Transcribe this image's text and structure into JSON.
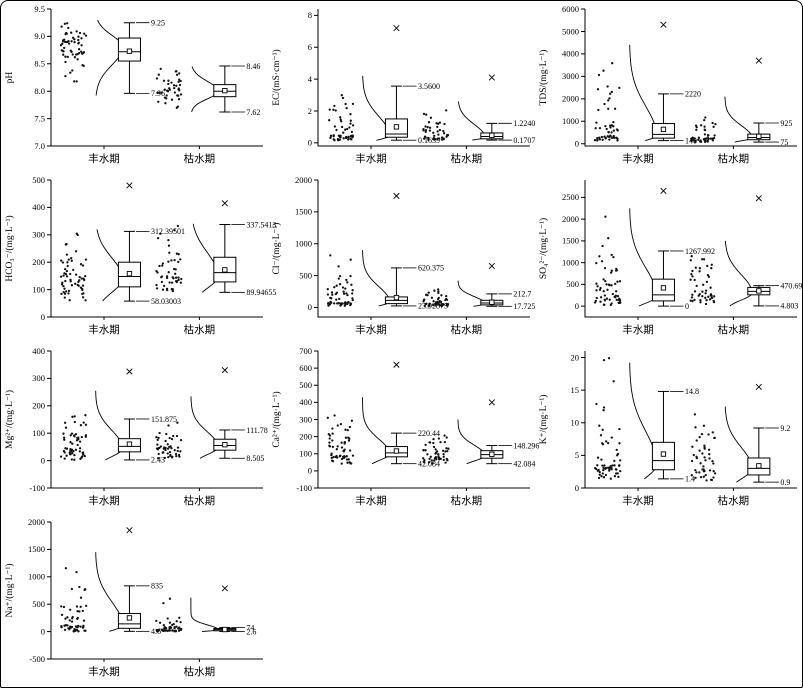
{
  "figure": {
    "background": "#ffffff",
    "border_color": "#000000",
    "line_color": "#000000",
    "categories": [
      "丰水期",
      "枯水期"
    ]
  },
  "chart_data": [
    {
      "id": "ph",
      "type": "box",
      "ylabel": "pH",
      "ylim": [
        7.0,
        9.5
      ],
      "ytick_values": [
        7.0,
        7.5,
        8.0,
        8.5,
        9.0,
        9.5
      ],
      "ytick_labels": [
        "7.0",
        "7.5",
        "8.0",
        "8.5",
        "9.0",
        "9.5"
      ],
      "groups": [
        {
          "category": "丰水期",
          "whisker_low": 7.96,
          "whisker_high": 9.25,
          "q1": 8.55,
          "median": 8.72,
          "q3": 8.97,
          "mean": 8.73,
          "label_high": "9.25",
          "label_low": "7.96",
          "outlier": null,
          "scatter": {
            "n": 60,
            "mode": 8.8,
            "sd_down": 0.32,
            "sd_up": 0.22,
            "min": 7.92,
            "max": 9.3
          },
          "extra": []
        },
        {
          "category": "枯水期",
          "whisker_low": 7.62,
          "whisker_high": 8.46,
          "q1": 7.9,
          "median": 8.0,
          "q3": 8.12,
          "mean": 8.01,
          "label_high": "8.46",
          "label_low": "7.62",
          "outlier": null,
          "scatter": {
            "n": 42,
            "mode": 8.0,
            "sd_down": 0.14,
            "sd_up": 0.18,
            "min": 7.62,
            "max": 8.45
          },
          "extra": []
        }
      ]
    },
    {
      "id": "ec",
      "type": "box",
      "ylabel": "EC/(mS·cm⁻¹)",
      "ylim": [
        -0.2,
        8.4
      ],
      "ytick_values": [
        0,
        2,
        4,
        6,
        8
      ],
      "ytick_labels": [
        "0",
        "2",
        "4",
        "6",
        "8"
      ],
      "groups": [
        {
          "category": "丰水期",
          "whisker_low": 0.1639,
          "whisker_high": 3.56,
          "q1": 0.35,
          "median": 0.55,
          "q3": 1.5,
          "mean": 1.0,
          "label_high": "3.5600",
          "label_low": "0.1639",
          "outlier": 7.2,
          "scatter": {
            "n": 55,
            "mode": 0.45,
            "sd_down": 0.25,
            "sd_up": 1.2,
            "min": 0.16,
            "max": 4.2
          },
          "extra": []
        },
        {
          "category": "枯水期",
          "whisker_low": 0.1707,
          "whisker_high": 1.224,
          "q1": 0.25,
          "median": 0.4,
          "q3": 0.62,
          "mean": 0.47,
          "label_high": "1.2240",
          "label_low": "0.1707",
          "outlier": 4.1,
          "scatter": {
            "n": 45,
            "mode": 0.35,
            "sd_down": 0.16,
            "sd_up": 0.8,
            "min": 0.17,
            "max": 2.6
          },
          "extra": []
        }
      ]
    },
    {
      "id": "tds",
      "type": "box",
      "ylabel": "TDS/(mg·L⁻¹)",
      "ylim": [
        -100,
        6000
      ],
      "ytick_values": [
        0,
        1000,
        2000,
        3000,
        4000,
        5000,
        6000
      ],
      "ytick_labels": [
        "0",
        "1000",
        "2000",
        "3000",
        "4000",
        "5000",
        "6000"
      ],
      "groups": [
        {
          "category": "丰水期",
          "whisker_low": 140,
          "whisker_high": 2220,
          "q1": 250,
          "median": 420,
          "q3": 900,
          "mean": 640,
          "label_high": "2220",
          "label_low": "140",
          "outlier": 5300,
          "scatter": {
            "n": 55,
            "mode": 350,
            "sd_down": 200,
            "sd_up": 1300,
            "min": 140,
            "max": 4400
          },
          "extra": []
        },
        {
          "category": "枯水期",
          "whisker_low": 75,
          "whisker_high": 925,
          "q1": 180,
          "median": 280,
          "q3": 430,
          "mean": 330,
          "label_high": "925",
          "label_low": "75",
          "outlier": 3700,
          "scatter": {
            "n": 45,
            "mode": 260,
            "sd_down": 130,
            "sd_up": 550,
            "min": 75,
            "max": 2100
          },
          "extra": []
        }
      ]
    },
    {
      "id": "hco3",
      "type": "box",
      "ylabel": "HCO₃⁻/(mg·L⁻¹)",
      "ylim": [
        0,
        500
      ],
      "ytick_values": [
        0,
        100,
        200,
        300,
        400,
        500
      ],
      "ytick_labels": [
        "0",
        "100",
        "200",
        "300",
        "400",
        "500"
      ],
      "groups": [
        {
          "category": "丰水期",
          "whisker_low": 58.03003,
          "whisker_high": 312.39501,
          "q1": 110,
          "median": 148,
          "q3": 200,
          "mean": 158,
          "label_high": "312.39501",
          "label_low": "58.03003",
          "outlier": 480,
          "scatter": {
            "n": 60,
            "mode": 140,
            "sd_down": 50,
            "sd_up": 75,
            "min": 58,
            "max": 320
          },
          "extra": []
        },
        {
          "category": "枯水期",
          "whisker_low": 89.94655,
          "whisker_high": 337.5413,
          "q1": 128,
          "median": 162,
          "q3": 218,
          "mean": 172,
          "label_high": "337.5413",
          "label_low": "89.94655",
          "outlier": 415,
          "scatter": {
            "n": 50,
            "mode": 150,
            "sd_down": 45,
            "sd_up": 85,
            "min": 90,
            "max": 340
          },
          "extra": []
        }
      ]
    },
    {
      "id": "cl",
      "type": "box",
      "ylabel": "Cl⁻/(mg·L⁻¹)",
      "ylim": [
        -150,
        2000
      ],
      "ytick_values": [
        0,
        500,
        1000,
        1500,
        2000
      ],
      "ytick_labels": [
        "0",
        "500",
        "1000",
        "1500",
        "2000"
      ],
      "groups": [
        {
          "category": "丰水期",
          "whisker_low": 23.92875,
          "whisker_high": 620.375,
          "q1": 60,
          "median": 110,
          "q3": 165,
          "mean": 155,
          "label_high": "620.375",
          "label_low": "23.92875",
          "outlier": 1750,
          "scatter": {
            "n": 60,
            "mode": 85,
            "sd_down": 60,
            "sd_up": 240,
            "min": 24,
            "max": 900
          },
          "extra": []
        },
        {
          "category": "枯水期",
          "whisker_low": 17.725,
          "whisker_high": 212.7,
          "q1": 40,
          "median": 70,
          "q3": 112,
          "mean": 82,
          "label_high": "212.7",
          "label_low": "17.725",
          "outlier": 650,
          "scatter": {
            "n": 50,
            "mode": 60,
            "sd_down": 40,
            "sd_up": 110,
            "min": 18,
            "max": 420
          },
          "extra": []
        }
      ]
    },
    {
      "id": "so4",
      "type": "box",
      "ylabel": "SO₄²⁻/(mg·L⁻¹)",
      "ylim": [
        -250,
        2900
      ],
      "ytick_values": [
        0,
        500,
        1000,
        1500,
        2000,
        2500
      ],
      "ytick_labels": [
        "0",
        "500",
        "1000",
        "1500",
        "2000",
        "2500"
      ],
      "groups": [
        {
          "category": "丰水期",
          "whisker_low": 0,
          "whisker_high": 1267.992,
          "q1": 120,
          "median": 260,
          "q3": 620,
          "mean": 420,
          "label_high": "1267.992",
          "label_low": "0",
          "outlier": 2650,
          "scatter": {
            "n": 58,
            "mode": 220,
            "sd_down": 150,
            "sd_up": 650,
            "min": 2,
            "max": 2250
          },
          "extra": []
        },
        {
          "category": "枯水期",
          "whisker_low": 4.803,
          "whisker_high": 470.694,
          "q1": 260,
          "median": 340,
          "q3": 430,
          "mean": 350,
          "label_high": "470.694",
          "label_low": "4.803",
          "outlier": 2480,
          "scatter": {
            "n": 48,
            "mode": 300,
            "sd_down": 160,
            "sd_up": 420,
            "min": 5,
            "max": 1500
          },
          "extra": []
        }
      ]
    },
    {
      "id": "mg",
      "type": "box",
      "ylabel": "Mg²⁺/(mg·L⁻¹)",
      "ylim": [
        -100,
        400
      ],
      "ytick_values": [
        -100,
        0,
        100,
        200,
        300,
        400
      ],
      "ytick_labels": [
        "-100",
        "0",
        "100",
        "200",
        "300",
        "400"
      ],
      "groups": [
        {
          "category": "丰水期",
          "whisker_low": 2.43,
          "whisker_high": 151.875,
          "q1": 32,
          "median": 52,
          "q3": 80,
          "mean": 60,
          "label_high": "151.875",
          "label_low": "2.43",
          "outlier": 325,
          "scatter": {
            "n": 58,
            "mode": 45,
            "sd_down": 30,
            "sd_up": 65,
            "min": 2.4,
            "max": 255
          },
          "extra": []
        },
        {
          "category": "枯水期",
          "whisker_low": 8.505,
          "whisker_high": 111.78,
          "q1": 38,
          "median": 55,
          "q3": 78,
          "mean": 58,
          "label_high": "111.78",
          "label_low": "8.505",
          "outlier": 330,
          "scatter": {
            "n": 48,
            "mode": 50,
            "sd_down": 28,
            "sd_up": 55,
            "min": 8.5,
            "max": 235
          },
          "extra": []
        }
      ]
    },
    {
      "id": "ca",
      "type": "box",
      "ylabel": "Ca²⁺/(mg·L⁻¹)",
      "ylim": [
        -100,
        700
      ],
      "ytick_values": [
        -100,
        0,
        100,
        200,
        300,
        400,
        500,
        600,
        700
      ],
      "ytick_labels": [
        "-100",
        "0",
        "100",
        "200",
        "300",
        "400",
        "500",
        "600",
        "700"
      ],
      "groups": [
        {
          "category": "丰水期",
          "whisker_low": 42.084,
          "whisker_high": 220.44,
          "q1": 82,
          "median": 105,
          "q3": 142,
          "mean": 116,
          "label_high": "220.44",
          "label_low": "42.084",
          "outlier": 620,
          "scatter": {
            "n": 58,
            "mode": 100,
            "sd_down": 40,
            "sd_up": 85,
            "min": 42,
            "max": 430
          },
          "extra": []
        },
        {
          "category": "枯水期",
          "whisker_low": 42.084,
          "whisker_high": 148.296,
          "q1": 74,
          "median": 95,
          "q3": 118,
          "mean": 97,
          "label_high": "148.296",
          "label_low": "42.084",
          "outlier": 400,
          "scatter": {
            "n": 48,
            "mode": 90,
            "sd_down": 32,
            "sd_up": 60,
            "min": 42,
            "max": 300
          },
          "extra": []
        }
      ]
    },
    {
      "id": "k",
      "type": "box",
      "ylabel": "K⁺/(mg·L⁻¹)",
      "ylim": [
        0,
        21
      ],
      "ytick_values": [
        0,
        5,
        10,
        15,
        20
      ],
      "ytick_labels": [
        "0",
        "5",
        "10",
        "15",
        "20"
      ],
      "groups": [
        {
          "category": "丰水期",
          "whisker_low": 1.4,
          "whisker_high": 14.8,
          "q1": 2.8,
          "median": 4.2,
          "q3": 7.0,
          "mean": 5.2,
          "label_high": "14.8",
          "label_low": "1.4",
          "outlier": null,
          "scatter": {
            "n": 58,
            "mode": 3.6,
            "sd_down": 2.0,
            "sd_up": 5.0,
            "min": 1.4,
            "max": 19.2
          },
          "extra": [
            19.6,
            19.9
          ]
        },
        {
          "category": "枯水期",
          "whisker_low": 0.9,
          "whisker_high": 9.2,
          "q1": 2.0,
          "median": 3.0,
          "q3": 4.6,
          "mean": 3.4,
          "label_high": "9.2",
          "label_low": "0.9",
          "outlier": 15.5,
          "scatter": {
            "n": 48,
            "mode": 3.0,
            "sd_down": 1.6,
            "sd_up": 3.2,
            "min": 0.9,
            "max": 12.5
          },
          "extra": []
        }
      ]
    },
    {
      "id": "na",
      "type": "box",
      "ylabel": "Na⁺/(mg·L⁻¹)",
      "ylim": [
        -500,
        2000
      ],
      "ytick_values": [
        -500,
        0,
        500,
        1000,
        1500,
        2000
      ],
      "ytick_labels": [
        "-500",
        "0",
        "500",
        "1000",
        "1500",
        "2000"
      ],
      "groups": [
        {
          "category": "丰水期",
          "whisker_low": 4.6,
          "whisker_high": 835,
          "q1": 60,
          "median": 140,
          "q3": 330,
          "mean": 250,
          "label_high": "835",
          "label_low": "4.6",
          "outlier": 1850,
          "scatter": {
            "n": 58,
            "mode": 110,
            "sd_down": 90,
            "sd_up": 430,
            "min": 5,
            "max": 1450
          },
          "extra": []
        },
        {
          "category": "枯水期",
          "whisker_low": 2.6,
          "whisker_high": 74,
          "q1": 15,
          "median": 35,
          "q3": 56,
          "mean": 38,
          "label_high": "74",
          "label_low": "2.6",
          "outlier": 790,
          "scatter": {
            "n": 48,
            "mode": 32,
            "sd_down": 22,
            "sd_up": 90,
            "min": 2.6,
            "max": 620
          },
          "extra": [
            520,
            600
          ]
        }
      ]
    }
  ]
}
